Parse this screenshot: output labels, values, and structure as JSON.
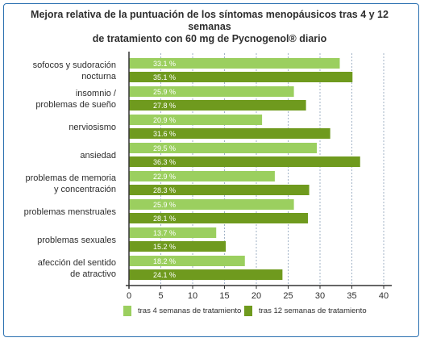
{
  "title_line1": "Mejora relativa de la puntuación de los síntomas menopáusicos tras 4 y 12 semanas",
  "title_line2": "de tratamiento con 60 mg de Pycnogenol® diario",
  "colors": {
    "series_4w": "#9bcf5f",
    "series_12w": "#6f9a1e",
    "axis": "#333333",
    "grid": "#8aa0b8",
    "frame": "#2a70b0"
  },
  "chart_data": {
    "type": "bar",
    "orientation": "horizontal",
    "title": "Mejora relativa de la puntuación de los síntomas menopáusicos tras 4 y 12 semanas de tratamiento con 60 mg de Pycnogenol® diario",
    "xlabel": "",
    "ylabel": "",
    "xlim": [
      0,
      40
    ],
    "xticks": [
      0,
      5,
      10,
      15,
      20,
      25,
      30,
      35,
      40
    ],
    "grid": true,
    "legend": "bottom",
    "categories": [
      [
        "sofocos y sudoración",
        "nocturna"
      ],
      [
        "insomnio /",
        "problemas de sueño"
      ],
      [
        "nerviosismo"
      ],
      [
        "ansiedad"
      ],
      [
        "problemas de memoria",
        "y concentración"
      ],
      [
        "problemas menstruales"
      ],
      [
        "problemas sexuales"
      ],
      [
        "afección del sentido",
        "de atractivo"
      ]
    ],
    "series": [
      {
        "name": "tras 4 semanas de tratamiento",
        "values": [
          33.1,
          25.9,
          20.9,
          29.5,
          22.9,
          25.9,
          13.7,
          18.2
        ],
        "labels": [
          "33.1 %",
          "25.9 %",
          "20.9 %",
          "29.5 %",
          "22.9 %",
          "25.9 %",
          "13.7 %",
          "18.2 %"
        ]
      },
      {
        "name": "tras 12 semanas de tratamiento",
        "values": [
          35.1,
          27.8,
          31.6,
          36.3,
          28.3,
          28.1,
          15.2,
          24.1
        ],
        "labels": [
          "35.1 %",
          "27.8 %",
          "31.6 %",
          "36.3 %",
          "28.3 %",
          "28.1 %",
          "15.2 %",
          "24.1 %"
        ]
      }
    ]
  }
}
